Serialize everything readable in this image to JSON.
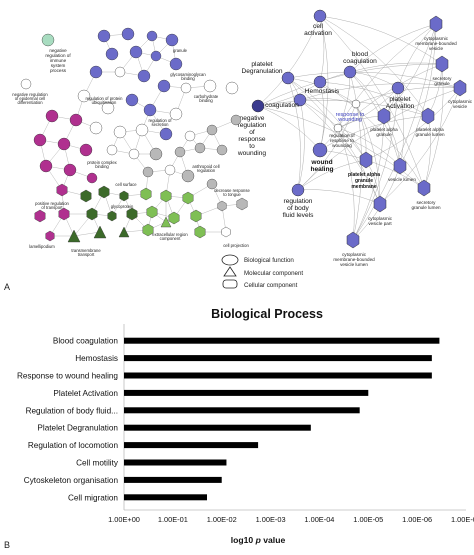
{
  "panel_a": {
    "letter": "A",
    "left_network_labels": {
      "negative_immune": "negative regulation of immune system process",
      "negative_epidermal": "negative regulation of epidermal cell differentiation",
      "granule": "granule",
      "platelet_alpha_membrane": "platelet alpha granule membrane",
      "glycosaminoglycan_binding": "glycosaminoglycan binding",
      "carbohydrate_binding": "carbohydrate binding",
      "cell_matrix": "cell matrix",
      "regulation_protein_ubiquitination": "regulation of protein ubiquitination",
      "regulation_secretion": "regulation of secretion",
      "cell_surface": "cell surface",
      "cell_cell_junction": "cell-cell junction",
      "protein_complex_binding": "protein complex binding",
      "anthropoid_cell_regulation": "anthropoid cell regulation",
      "cell_projection": "cell projection",
      "glycoprotein": "glycoprotein",
      "positive_regulation_transport": "positive regulation of transport",
      "extracellular_region": "extracellular region component",
      "transmembrane_transport": "transmembrane transport",
      "lamellipodium": "lamellipodium",
      "cell_periphery": "cell periphery",
      "cell_projection_2": "cell projection"
    },
    "right_network_labels": {
      "cell_activation": "cell activation",
      "platelet_degranulation": "platelet Degranulation",
      "hemostasis": "Hemostasis",
      "blood_coagulation": "blood coagulation",
      "coagulation": "coagulation",
      "platelet_activation": "platelet Activation",
      "response_to_wounding": "response to wounding",
      "negative_regulation": "negative regulation of response to wounding",
      "regulation_of_response": "regulation of response to wounding",
      "wound_healing": "wound healing",
      "platelet_alpha_granule": "platelet alpha granule",
      "platelet_alpha_granule_membrane": "platelet alpha granule membrane",
      "platelet_alpha_granule_lumen": "platelet alpha granule lumen",
      "vesicle_lumen": "vesicle lumen",
      "regulation_body_fluid": "regulation of body fluid levels",
      "secretory_granule_lumen": "secretory granule lumen",
      "cytoplasmic_vesicle_part": "cytoplasmic vesicle part",
      "cytoplasmic_membrane_bounded": "cytoplasmic membrane-bounded vesicle lumen",
      "cytoplasmic_membrane_bounded_vesicle": "cytoplasmic membrane-bounded vesicle",
      "secretory_granule": "secretory granule",
      "cytoplasmic_vesicle": "cytoplasmic vesicle"
    },
    "legend": [
      "Biological function",
      "Molecular component",
      "Cellular component"
    ],
    "colors": {
      "purple": "#6b6bc9",
      "dark_purple": "#3b3b8f",
      "magenta": "#b0308f",
      "dark_green": "#3c6a2a",
      "light_green": "#7fbf55",
      "gray": "#b8b8b8",
      "white": "#ffffff",
      "edge": "#9a9a9a",
      "mint": "#a8dcc0"
    }
  },
  "panel_b": {
    "letter": "B",
    "chart_data": {
      "type": "bar",
      "orientation": "horizontal",
      "title": "Biological Process",
      "xlabel_main": "log10",
      "xlabel_italic": "p",
      "xlabel_tail": "value",
      "ylabel": "",
      "categories": [
        "Blood coagulation",
        "Hemostasis",
        "Response to wound healing",
        "Platelet Activation",
        "Regulation of body fluid...",
        "Platelet Degranulation",
        "Regulation of locomotion",
        "Cell motility",
        "Cytoskeleton organisation",
        "Cell migration"
      ],
      "p_values": [
        3.5e-07,
        5e-07,
        5e-07,
        1e-05,
        1.5e-05,
        0.00015,
        0.0018,
        0.008,
        0.01,
        0.02
      ],
      "x_ticks": [
        "1.00E+00",
        "1.00E-01",
        "1.00E-02",
        "1.00E-03",
        "1.00E-04",
        "1.00E-05",
        "1.00E-06",
        "1.00E-07"
      ],
      "x_scale": "log, reversed",
      "xlim": [
        1,
        1e-07
      ],
      "bar_color": "#000000",
      "grid": false
    }
  }
}
